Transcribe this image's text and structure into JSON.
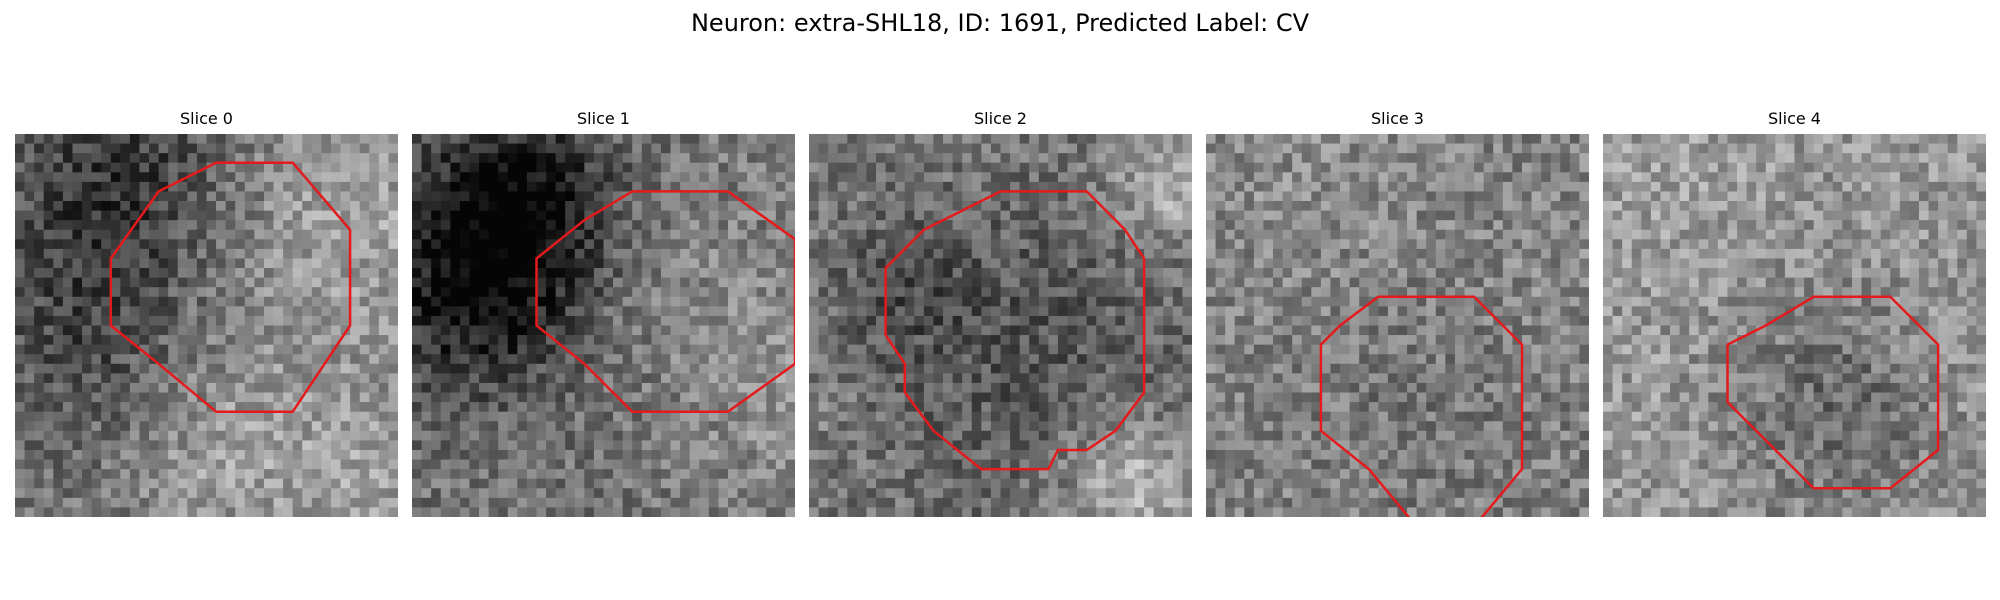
{
  "figure": {
    "title": "Neuron: extra-SHL18, ID: 1691, Predicted Label: CV"
  },
  "style": {
    "contour_color": "#e41a1c",
    "colormap": "grayscale"
  },
  "panels": [
    {
      "title": "Slice 0",
      "contour": [
        [
          21,
          3
        ],
        [
          29,
          3
        ],
        [
          35,
          10
        ],
        [
          35,
          20
        ],
        [
          29,
          29
        ],
        [
          21,
          29
        ],
        [
          15,
          24
        ],
        [
          10,
          20
        ],
        [
          10,
          13
        ],
        [
          15,
          6
        ]
      ]
    },
    {
      "title": "Slice 1",
      "contour": [
        [
          23,
          6
        ],
        [
          33,
          6
        ],
        [
          40,
          11
        ],
        [
          40,
          24
        ],
        [
          33,
          29
        ],
        [
          23,
          29
        ],
        [
          18,
          24
        ],
        [
          13,
          20
        ],
        [
          13,
          13
        ],
        [
          18,
          9
        ]
      ]
    },
    {
      "title": "Slice 2",
      "contour": [
        [
          20,
          6
        ],
        [
          29,
          6
        ],
        [
          33,
          10
        ],
        [
          35,
          13
        ],
        [
          35,
          27
        ],
        [
          32,
          31
        ],
        [
          29,
          33
        ],
        [
          26,
          33
        ],
        [
          25,
          35
        ],
        [
          18,
          35
        ],
        [
          13,
          31
        ],
        [
          10,
          27
        ],
        [
          10,
          24
        ],
        [
          8,
          21
        ],
        [
          8,
          14
        ],
        [
          12,
          10
        ],
        [
          16,
          8
        ],
        [
          18,
          7
        ]
      ]
    },
    {
      "title": "Slice 3",
      "contour": [
        [
          18,
          17
        ],
        [
          28,
          17
        ],
        [
          33,
          22
        ],
        [
          33,
          35
        ],
        [
          28,
          41
        ],
        [
          22,
          41
        ],
        [
          17,
          35
        ],
        [
          12,
          31
        ],
        [
          12,
          22
        ],
        [
          14,
          20
        ]
      ]
    },
    {
      "title": "Slice 4",
      "contour": [
        [
          22,
          17
        ],
        [
          30,
          17
        ],
        [
          35,
          22
        ],
        [
          35,
          33
        ],
        [
          30,
          37
        ],
        [
          22,
          37
        ],
        [
          17,
          32
        ],
        [
          13,
          28
        ],
        [
          13,
          22
        ],
        [
          17,
          20
        ]
      ]
    }
  ]
}
